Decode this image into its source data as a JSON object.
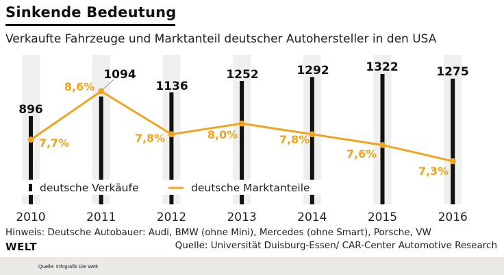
{
  "header": {
    "title": "Sinkende Bedeutung",
    "subtitle": "Verkaufte Fahrzeuge und Marktanteil deutscher Autohersteller in den USA"
  },
  "chart_data": {
    "type": "bar",
    "title": "Sinkende Bedeutung",
    "subtitle": "Verkaufte Fahrzeuge und Marktanteil deutscher Autohersteller in den USA",
    "categories": [
      "2010",
      "2011",
      "2012",
      "2013",
      "2014",
      "2015",
      "2016"
    ],
    "series": [
      {
        "name": "deutsche Verkäufe",
        "type": "bar",
        "color": "#111111",
        "values": [
          896,
          1094,
          1136,
          1252,
          1292,
          1322,
          1275
        ],
        "labels": [
          "896",
          "1094",
          "1136",
          "1252",
          "1292",
          "1322",
          "1275"
        ]
      },
      {
        "name": "deutsche Marktanteile",
        "type": "line",
        "color": "#f0a41e",
        "values": [
          7.7,
          8.6,
          7.8,
          8.0,
          7.8,
          7.6,
          7.3
        ],
        "labels": [
          "7,7%",
          "8,6%",
          "7,8%",
          "8,0%",
          "7,8%",
          "7,6%",
          "7,3%"
        ]
      }
    ],
    "xlabel": "",
    "ylabel": "",
    "grid": false,
    "legend": "bottom-left",
    "colors": {
      "band": "#efefef",
      "bar": "#111111",
      "line": "#f0a41e"
    }
  },
  "legend": {
    "items": [
      {
        "label": "deutsche Verkäufe"
      },
      {
        "label": "deutsche Marktanteile"
      }
    ]
  },
  "footer": {
    "note": "Hinweis: Deutsche Autobauer: Audi, BMW (ohne Mini), Mercedes (ohne Smart), Porsche, VW",
    "source": "Quelle: Universität Duisburg-Essen/ CAR-Center Automotive Research",
    "logo": "WELT",
    "credit": "Quelle: Infografik Die Welt"
  }
}
